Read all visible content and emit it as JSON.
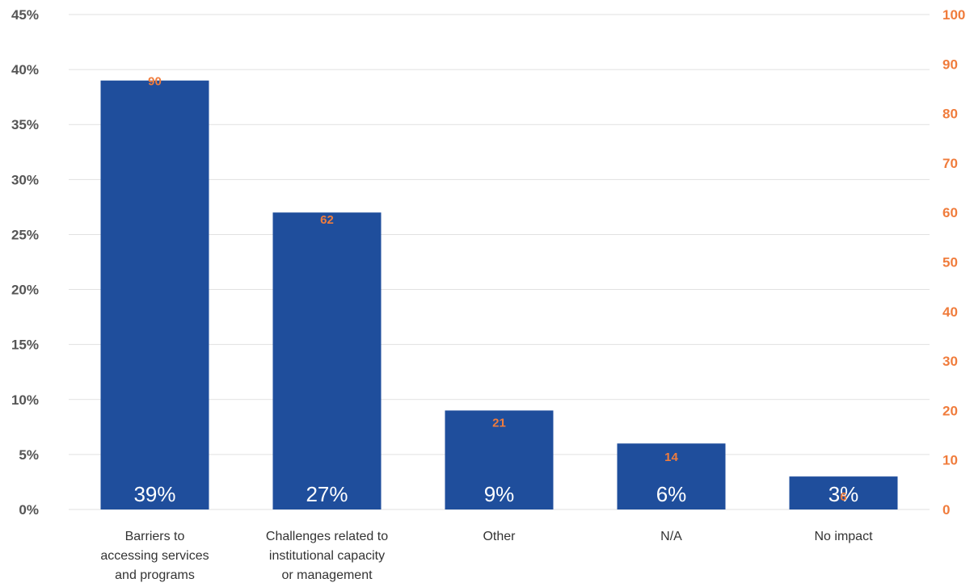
{
  "colors": {
    "bar": "#1f4e9c",
    "accent": "#f07c3c",
    "left_axis_text": "#555555",
    "grid": "#e1e1e1"
  },
  "chart_data": {
    "type": "bar",
    "categories": [
      "Barriers to accessing services and programs",
      "Challenges related to institutional capacity or management",
      "Other",
      "N/A",
      "No impact"
    ],
    "category_lines": [
      [
        "Barriers to",
        "accessing services",
        "and programs"
      ],
      [
        "Challenges related to",
        "institutional capacity",
        "or management"
      ],
      [
        "Other"
      ],
      [
        "N/A"
      ],
      [
        "No impact"
      ]
    ],
    "series": [
      {
        "values": [
          39,
          27,
          9,
          6,
          3
        ],
        "value_labels": [
          "39%",
          "27%",
          "9%",
          "6%",
          "3%"
        ]
      },
      {
        "values": [
          90,
          62,
          21,
          14,
          6
        ],
        "value_labels": [
          "90",
          "62",
          "21",
          "14",
          "6"
        ]
      }
    ],
    "left_axis": {
      "ylim": [
        0,
        45
      ],
      "ticks": [
        0,
        5,
        10,
        15,
        20,
        25,
        30,
        35,
        40,
        45
      ],
      "tick_labels": [
        "0%",
        "5%",
        "10%",
        "15%",
        "20%",
        "25%",
        "30%",
        "35%",
        "40%",
        "45%"
      ]
    },
    "right_axis": {
      "ylim": [
        0,
        100
      ],
      "ticks": [
        0,
        10,
        20,
        30,
        40,
        50,
        60,
        70,
        80,
        90,
        100
      ],
      "tick_labels": [
        "0",
        "10",
        "20",
        "30",
        "40",
        "50",
        "60",
        "70",
        "80",
        "90",
        "100"
      ]
    },
    "grid": true,
    "legend": "none"
  }
}
